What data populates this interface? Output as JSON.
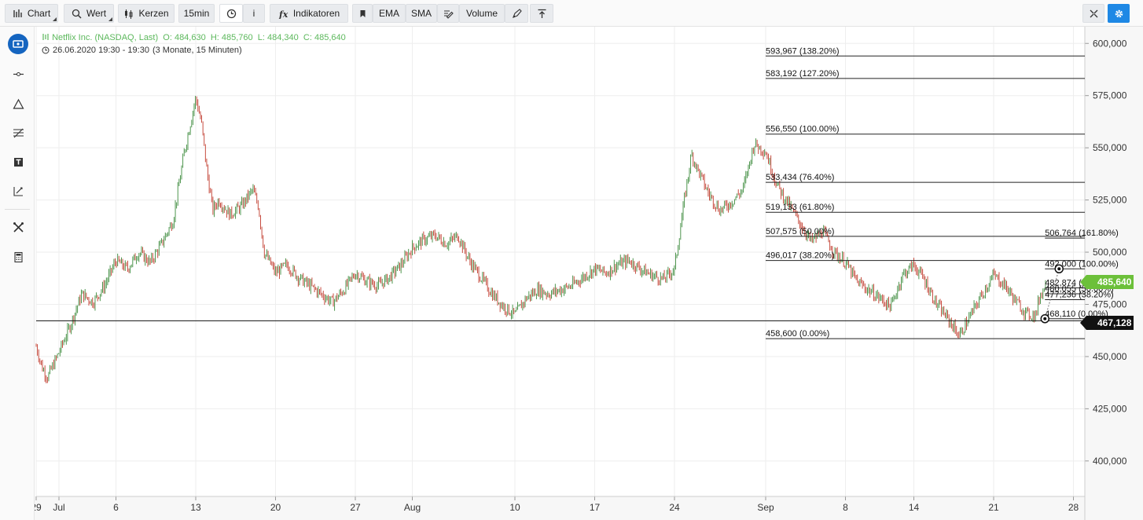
{
  "toolbar": {
    "chart_label": "Chart",
    "wert_label": "Wert",
    "kerzen_label": "Kerzen",
    "interval_label": "15min",
    "info_label": "i",
    "indikatoren_label": "Indikatoren",
    "ema_label": "EMA",
    "sma_label": "SMA",
    "volume_label": "Volume",
    "accent": "#1e88e5"
  },
  "legend": {
    "instrument": "Netflix Inc. (NASDAQ, Last)",
    "open": "O: 484,630",
    "high": "H: 485,760",
    "low": "L: 484,340",
    "close": "C: 485,640",
    "datetime": "26.06.2020 19:30 - 19:30",
    "range": "(3 Monate, 15 Minuten)",
    "color": "#5cb85c"
  },
  "price_tags": {
    "last": "485,640",
    "line": "467,128"
  },
  "chart_data": {
    "type": "candlestick",
    "instrument": "Netflix Inc. (NASDAQ, Last)",
    "interval": "15min",
    "ylim": [
      383000,
      608000
    ],
    "y_ticks": [
      "400,000",
      "425,000",
      "450,000",
      "475,000",
      "500,000",
      "525,000",
      "550,000",
      "575,000",
      "600,000"
    ],
    "y_tick_values": [
      400000,
      425000,
      450000,
      475000,
      500000,
      525000,
      550000,
      575000,
      600000
    ],
    "x_tick_labels": [
      "29",
      "Jul",
      "6",
      "13",
      "20",
      "27",
      "Aug",
      "10",
      "17",
      "24",
      "Sep",
      "8",
      "14",
      "21",
      "28"
    ],
    "x_tick_days": [
      0,
      2,
      7,
      14,
      21,
      28,
      33,
      42,
      49,
      56,
      64,
      71,
      77,
      84,
      91
    ],
    "x_range_days": [
      0,
      92
    ],
    "price_path": [
      [
        0,
        455000
      ],
      [
        0.5,
        445000
      ],
      [
        1,
        440000
      ],
      [
        2,
        452000
      ],
      [
        3,
        465000
      ],
      [
        4,
        480000
      ],
      [
        5,
        476000
      ],
      [
        6,
        484000
      ],
      [
        7,
        496000
      ],
      [
        8,
        492000
      ],
      [
        9,
        500000
      ],
      [
        10,
        495000
      ],
      [
        11,
        504000
      ],
      [
        12,
        515000
      ],
      [
        13,
        548000
      ],
      [
        14,
        574000
      ],
      [
        14.5,
        562000
      ],
      [
        15,
        538000
      ],
      [
        15.5,
        520000
      ],
      [
        16,
        525000
      ],
      [
        17,
        518000
      ],
      [
        18,
        522000
      ],
      [
        19,
        530000
      ],
      [
        19.5,
        522000
      ],
      [
        20,
        500000
      ],
      [
        21,
        490000
      ],
      [
        22,
        494000
      ],
      [
        23,
        488000
      ],
      [
        24,
        484000
      ],
      [
        25,
        480000
      ],
      [
        26,
        476000
      ],
      [
        27,
        482000
      ],
      [
        28,
        490000
      ],
      [
        29,
        486000
      ],
      [
        30,
        484000
      ],
      [
        31,
        488000
      ],
      [
        32,
        494000
      ],
      [
        33,
        502000
      ],
      [
        34,
        506000
      ],
      [
        35,
        508000
      ],
      [
        36,
        504000
      ],
      [
        37,
        508000
      ],
      [
        38,
        496000
      ],
      [
        39,
        488000
      ],
      [
        40,
        480000
      ],
      [
        41,
        474000
      ],
      [
        42,
        470000
      ],
      [
        43,
        478000
      ],
      [
        44,
        482000
      ],
      [
        45,
        480000
      ],
      [
        46,
        482000
      ],
      [
        47,
        484000
      ],
      [
        48,
        488000
      ],
      [
        49,
        492000
      ],
      [
        50,
        490000
      ],
      [
        51,
        494000
      ],
      [
        52,
        496000
      ],
      [
        53,
        492000
      ],
      [
        54,
        489000
      ],
      [
        55,
        487000
      ],
      [
        56,
        492000
      ],
      [
        57,
        530000
      ],
      [
        57.5,
        547000
      ],
      [
        58,
        540000
      ],
      [
        59,
        528000
      ],
      [
        60,
        520000
      ],
      [
        61,
        524000
      ],
      [
        62,
        530000
      ],
      [
        63,
        552000
      ],
      [
        64,
        548000
      ],
      [
        65,
        532000
      ],
      [
        66,
        523000
      ],
      [
        67,
        514000
      ],
      [
        68,
        505000
      ],
      [
        69,
        510000
      ],
      [
        70,
        500000
      ],
      [
        71,
        495000
      ],
      [
        72,
        486000
      ],
      [
        73,
        482000
      ],
      [
        74,
        478000
      ],
      [
        75,
        474000
      ],
      [
        76,
        489000
      ],
      [
        77,
        494000
      ],
      [
        78,
        486000
      ],
      [
        79,
        475000
      ],
      [
        80,
        468000
      ],
      [
        81,
        460000
      ],
      [
        82,
        470000
      ],
      [
        83,
        480000
      ],
      [
        84,
        489000
      ],
      [
        85,
        484000
      ],
      [
        86,
        476000
      ],
      [
        87,
        470000
      ],
      [
        87.7,
        470000
      ],
      [
        88,
        478000
      ],
      [
        88.6,
        485640
      ]
    ],
    "horizontal_line": {
      "value": 467128,
      "label": "467,128"
    },
    "last_price": {
      "value": 485640,
      "label": "485,640"
    },
    "fib_retracements": [
      {
        "x_start_day": 64,
        "levels": [
          {
            "value": 593967,
            "label": "593,967 (138.20%)"
          },
          {
            "value": 583192,
            "label": "583,192 (127.20%)"
          },
          {
            "value": 556550,
            "label": "556,550 (100.00%)"
          },
          {
            "value": 533434,
            "label": "533,434 (76.40%)"
          },
          {
            "value": 519133,
            "label": "519,133 (61.80%)"
          },
          {
            "value": 507575,
            "label": "507,575 (50.00%)"
          },
          {
            "value": 496017,
            "label": "496,017 (38.20%)"
          },
          {
            "value": 458600,
            "label": "458,600 (0.00%)"
          }
        ]
      },
      {
        "x_start_day": 88.5,
        "levels": [
          {
            "value": 506764,
            "label": "506,764 (161.80%)"
          },
          {
            "value": 492000,
            "label": "492,000 (100.00%)"
          },
          {
            "value": 482874,
            "label": "482,874 (61.80%)"
          },
          {
            "value": 480055,
            "label": "480,055 (50.00%)"
          },
          {
            "value": 477236,
            "label": "477,236 (38.20%)"
          },
          {
            "value": 468110,
            "label": "468,110 (0.00%)"
          }
        ]
      }
    ],
    "up_color": "#3b8a3b",
    "down_color": "#c0392b",
    "grid": true
  }
}
